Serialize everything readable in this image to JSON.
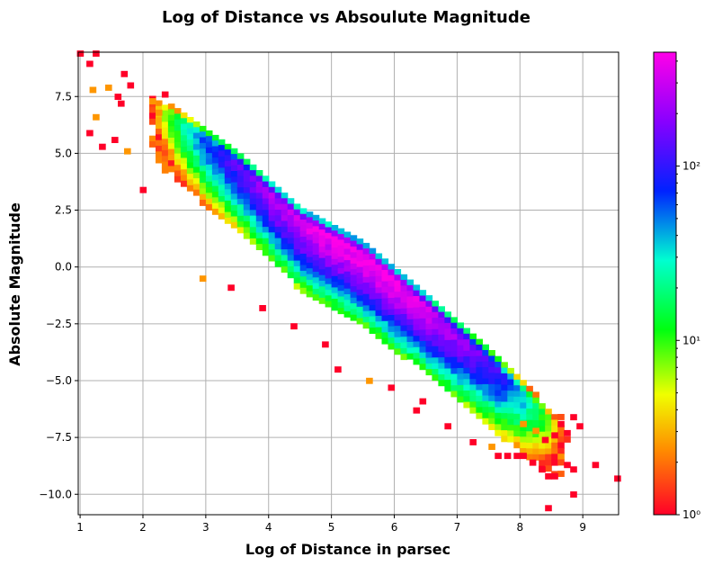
{
  "chart_data": {
    "type": "heatmap",
    "title": "Log of Distance vs Absoulute Magnitude",
    "xlabel": "Log of Distance in parsec",
    "ylabel": "Absolute Magnitude",
    "xlim": [
      0.97,
      9.57
    ],
    "ylim": [
      -10.9,
      9.45
    ],
    "xticks": [
      1,
      2,
      3,
      4,
      5,
      6,
      7,
      8,
      9
    ],
    "xtick_labels": [
      "1",
      "2",
      "3",
      "4",
      "5",
      "6",
      "7",
      "8",
      "9"
    ],
    "yticks": [
      7.5,
      5.0,
      2.5,
      0.0,
      -2.5,
      -5.0,
      -7.5,
      -10.0
    ],
    "ytick_labels": [
      "7.5",
      "5.0",
      "2.5",
      "0.0",
      "−2.5",
      "−5.0",
      "−7.5",
      "−10.0"
    ],
    "grid": true,
    "colormap": "gist_rainbow_r",
    "colorbar": {
      "scale": "log",
      "min": 1,
      "max": 450,
      "ticks": [
        1,
        10,
        100
      ],
      "tick_labels": [
        "10⁰",
        "10¹",
        "10²"
      ]
    },
    "band": {
      "description_ridge_points": [
        [
          2.5,
          6.5
        ],
        [
          3.5,
          4.5
        ],
        [
          4.5,
          2.0
        ],
        [
          5.5,
          0.5
        ],
        [
          6.5,
          -1.8
        ],
        [
          7.5,
          -4.2
        ],
        [
          8.3,
          -6.3
        ]
      ],
      "peak_bin": [
        5.5,
        0.5
      ],
      "peak_count": 450
    },
    "outliers": [
      [
        1.0,
        9.4
      ],
      [
        1.15,
        8.95
      ],
      [
        1.25,
        9.4
      ],
      [
        1.2,
        7.8
      ],
      [
        1.45,
        7.9
      ],
      [
        1.6,
        7.5
      ],
      [
        1.7,
        8.5
      ],
      [
        1.8,
        8.0
      ],
      [
        1.65,
        7.2
      ],
      [
        1.25,
        6.6
      ],
      [
        1.55,
        5.6
      ],
      [
        1.15,
        5.9
      ],
      [
        1.35,
        5.3
      ],
      [
        1.75,
        5.1
      ],
      [
        2.0,
        3.4
      ],
      [
        2.15,
        7.3
      ],
      [
        2.35,
        7.6
      ],
      [
        2.25,
        6.8
      ],
      [
        2.95,
        -0.5
      ],
      [
        3.4,
        -0.9
      ],
      [
        3.9,
        -1.8
      ],
      [
        4.4,
        -2.6
      ],
      [
        4.9,
        -3.4
      ],
      [
        5.1,
        -4.5
      ],
      [
        5.6,
        -5.0
      ],
      [
        5.95,
        -5.3
      ],
      [
        6.35,
        -6.3
      ],
      [
        6.45,
        -5.9
      ],
      [
        6.85,
        -7.0
      ],
      [
        7.25,
        -7.7
      ],
      [
        7.55,
        -7.9
      ],
      [
        7.65,
        -8.3
      ],
      [
        7.8,
        -8.3
      ],
      [
        7.95,
        -8.3
      ],
      [
        8.05,
        -8.3
      ],
      [
        8.2,
        -8.6
      ],
      [
        8.35,
        -8.9
      ],
      [
        8.45,
        -9.2
      ],
      [
        8.55,
        -9.2
      ],
      [
        8.75,
        -8.7
      ],
      [
        8.85,
        -8.9
      ],
      [
        9.2,
        -8.7
      ],
      [
        8.45,
        -10.6
      ],
      [
        8.85,
        -10.0
      ],
      [
        9.55,
        -9.3
      ],
      [
        8.4,
        -7.6
      ],
      [
        8.55,
        -7.4
      ],
      [
        8.75,
        -7.3
      ],
      [
        8.95,
        -7.0
      ],
      [
        8.65,
        -6.9
      ],
      [
        8.85,
        -6.6
      ],
      [
        8.05,
        -6.9
      ],
      [
        8.25,
        -7.2
      ]
    ]
  }
}
